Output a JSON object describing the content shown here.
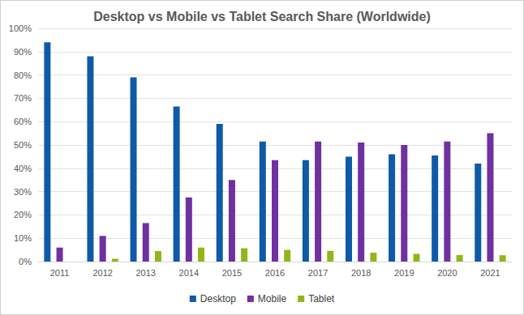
{
  "chart_data": {
    "type": "bar",
    "title": "Desktop vs Mobile vs Tablet Search Share (Worldwide)",
    "categories": [
      "2011",
      "2012",
      "2013",
      "2014",
      "2015",
      "2016",
      "2017",
      "2018",
      "2019",
      "2020",
      "2021"
    ],
    "series": [
      {
        "name": "Desktop",
        "color": "#0e5aa7",
        "values": [
          94,
          88,
          79,
          66.5,
          59,
          51.5,
          43.5,
          45,
          46,
          45.5,
          42
        ]
      },
      {
        "name": "Mobile",
        "color": "#7030a0",
        "values": [
          6,
          11,
          16.5,
          27.5,
          35,
          43.5,
          51.5,
          51,
          50,
          51.5,
          55
        ]
      },
      {
        "name": "Tablet",
        "color": "#92b619",
        "values": [
          0,
          1.2,
          4.5,
          6,
          5.7,
          5,
          4.6,
          3.8,
          3.3,
          2.8,
          2.7
        ]
      }
    ],
    "ylim": [
      0,
      100
    ],
    "yticks": [
      {
        "value": 0,
        "label": "0%"
      },
      {
        "value": 10,
        "label": "10%"
      },
      {
        "value": 20,
        "label": "20%"
      },
      {
        "value": 30,
        "label": "30%"
      },
      {
        "value": 40,
        "label": "40%"
      },
      {
        "value": 50,
        "label": "50%"
      },
      {
        "value": 60,
        "label": "60%"
      },
      {
        "value": 70,
        "label": "70%"
      },
      {
        "value": 80,
        "label": "80%"
      },
      {
        "value": 90,
        "label": "90%"
      },
      {
        "value": 100,
        "label": "100%"
      }
    ],
    "grid": true,
    "legend": "bottom"
  }
}
